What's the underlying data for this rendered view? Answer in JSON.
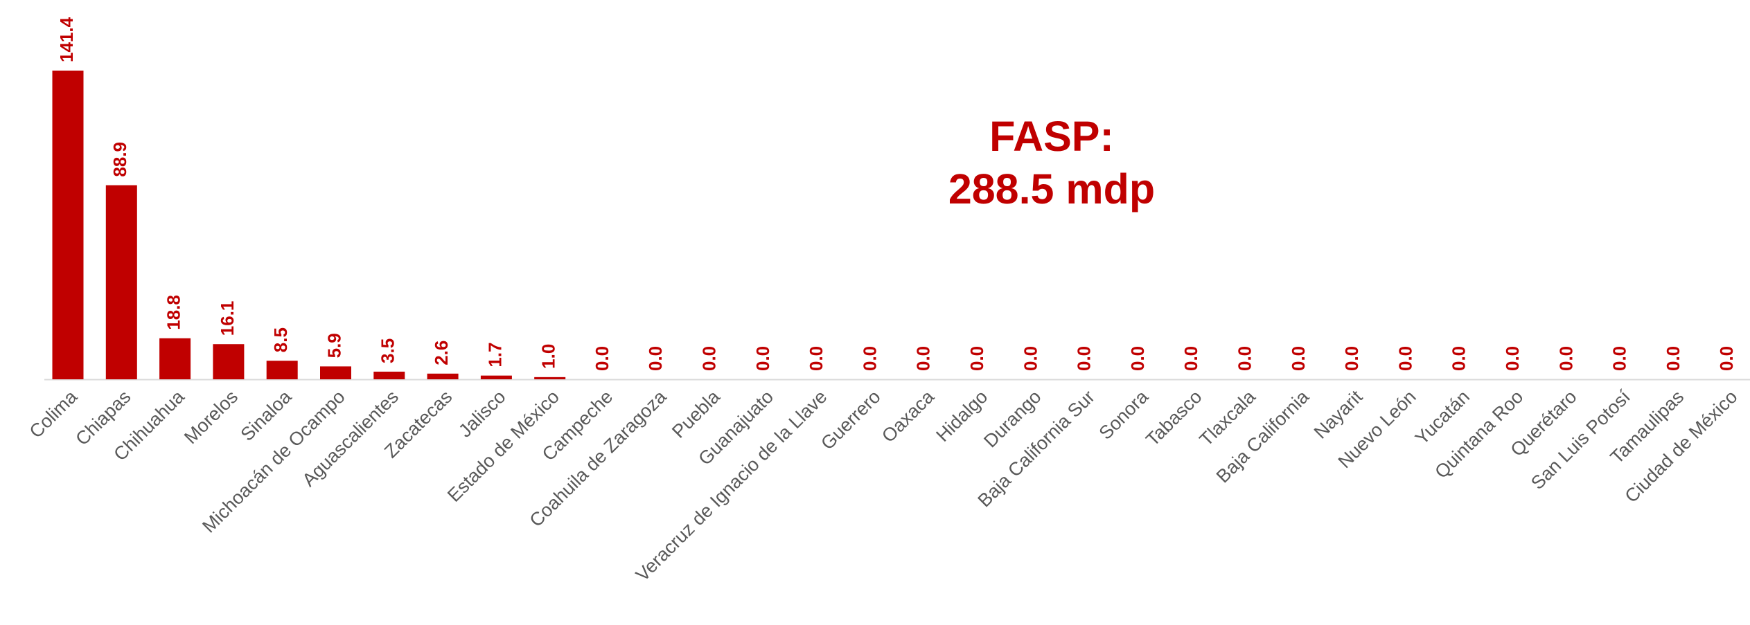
{
  "chart_data": {
    "type": "bar",
    "annotation": [
      "FASP:",
      "288.5 mdp"
    ],
    "categories": [
      "Colima",
      "Chiapas",
      "Chihuahua",
      "Morelos",
      "Sinaloa",
      "Michoacán de Ocampo",
      "Aguascalientes",
      "Zacatecas",
      "Jalisco",
      "Estado de México",
      "Campeche",
      "Coahuila de Zaragoza",
      "Puebla",
      "Guanajuato",
      "Veracruz de Ignacio de la Llave",
      "Guerrero",
      "Oaxaca",
      "Hidalgo",
      "Durango",
      "Baja California Sur",
      "Sonora",
      "Tabasco",
      "Tlaxcala",
      "Baja California",
      "Nayarit",
      "Nuevo León",
      "Yucatán",
      "Quintana Roo",
      "Querétaro",
      "San Luis Potosí",
      "Tamaulipas",
      "Ciudad de México"
    ],
    "values": [
      141.4,
      88.9,
      18.8,
      16.1,
      8.5,
      5.9,
      3.5,
      2.6,
      1.7,
      1.0,
      0,
      0,
      0,
      0,
      0,
      0,
      0,
      0,
      0,
      0,
      0,
      0,
      0,
      0,
      0,
      0,
      0,
      0,
      0,
      0,
      0,
      0
    ],
    "value_labels": [
      "141.4",
      "88.9",
      "18.8",
      "16.1",
      "8.5",
      "5.9",
      "3.5",
      "2.6",
      "1.7",
      "1.0",
      "0.0",
      "0.0",
      "0.0",
      "0.0",
      "0.0",
      "0.0",
      "0.0",
      "0.0",
      "0.0",
      "0.0",
      "0.0",
      "0.0",
      "0.0",
      "0.0",
      "0.0",
      "0.0",
      "0.0",
      "0.0",
      "0.0",
      "0.0",
      "0.0",
      "0.0"
    ],
    "color": "#c00000"
  }
}
